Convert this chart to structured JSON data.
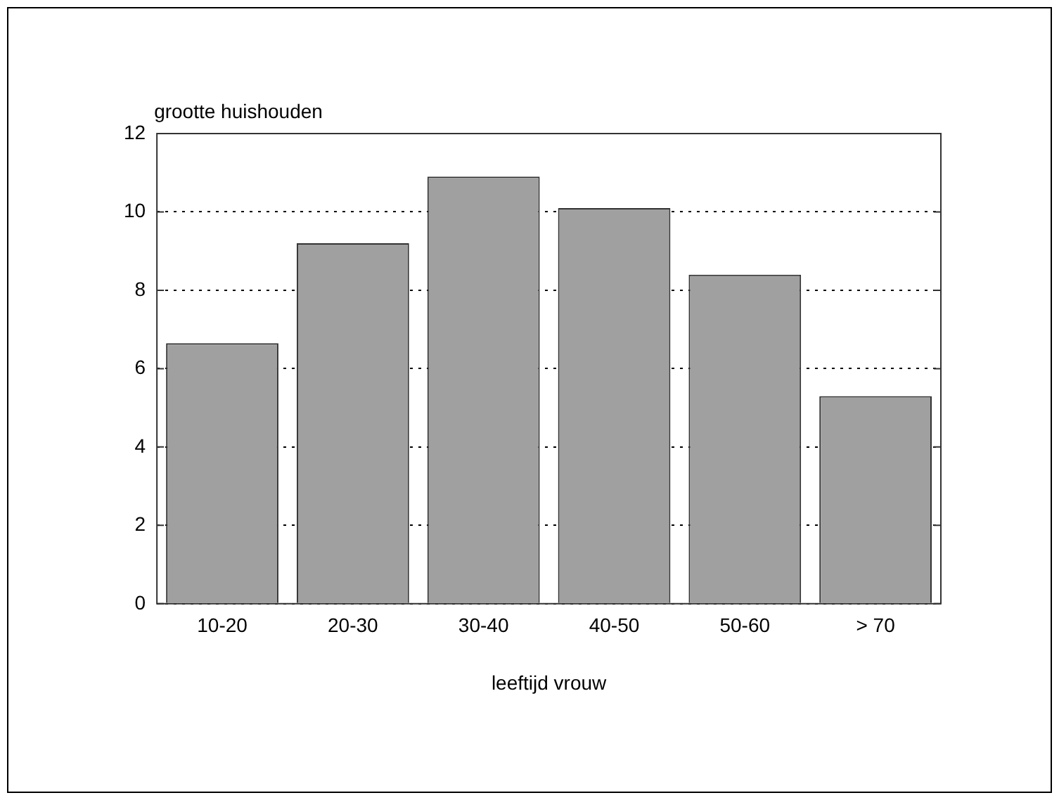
{
  "chart_data": {
    "type": "bar",
    "ylabel": "grootte huishouden",
    "xlabel": "leeftijd vrouw",
    "categories": [
      "10-20",
      "20-30",
      "30-40",
      "40-50",
      "50-60",
      "> 70"
    ],
    "values": [
      6.65,
      9.2,
      10.9,
      10.1,
      8.4,
      5.3
    ],
    "color": "#a0a0a0",
    "ylim": [
      0,
      12
    ],
    "yticks": [
      0,
      2,
      4,
      6,
      8,
      10,
      12
    ],
    "grid": "y",
    "line_style": "dotted"
  }
}
